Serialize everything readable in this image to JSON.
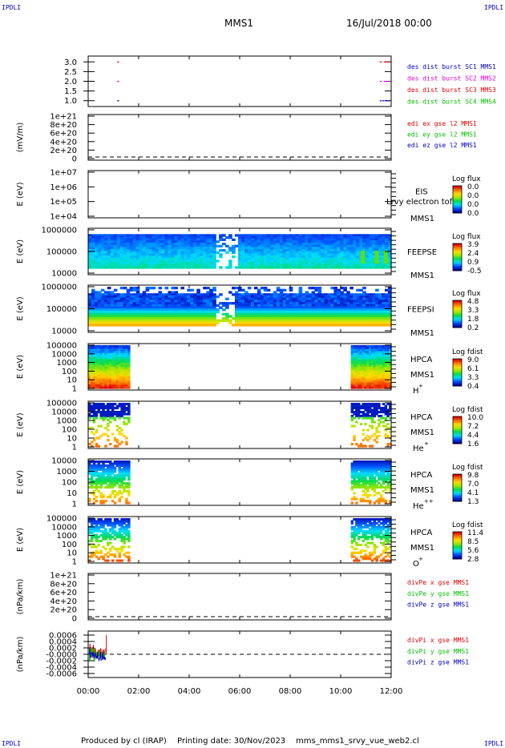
{
  "corner_marks": {
    "tl": "IPDLI",
    "tr": "IPDLI",
    "bl": "IPDLI",
    "br": "IPDLI"
  },
  "header": {
    "spacecraft": "MMS1",
    "date": "16/Jul/2018 00:00"
  },
  "footer": {
    "producer": "Produced by cl (IRAP)",
    "printing": "Printing date: 30/Nov/2023",
    "script": "mms_mms1_srvy_vue_web2.cl"
  },
  "colors": {
    "red": "#e00000",
    "magenta": "#e000e0",
    "green": "#00c000",
    "blue": "#0000c0",
    "dash": "#000000"
  },
  "chart_data": [
    {
      "id": "p1",
      "type": "scatter",
      "ylabel": "",
      "yticks": [
        "3.0",
        "2.5",
        "2.0",
        "1.5",
        "1.0"
      ],
      "ylim": [
        0.7,
        3.3
      ],
      "legend": [
        {
          "label": "des dist burst SC1 MMS1",
          "color": "blue"
        },
        {
          "label": "des dist burst SC2 MMS2",
          "color": "magenta"
        },
        {
          "label": "des dist burst SC3 MMS3",
          "color": "red"
        },
        {
          "label": "des dist burst SC4 MMS4",
          "color": "green"
        }
      ],
      "series": [
        {
          "name": "des dist burst SC1 MMS1",
          "color": "blue",
          "points": [
            [
              1.15,
              1.0
            ],
            [
              11.55,
              1.0
            ],
            [
              11.65,
              1.0
            ],
            [
              11.75,
              1.0
            ],
            [
              11.85,
              1.0
            ]
          ]
        },
        {
          "name": "des dist burst SC2 MMS2",
          "color": "magenta",
          "points": [
            [
              1.15,
              2.0
            ],
            [
              11.55,
              2.0
            ],
            [
              11.7,
              2.0
            ],
            [
              11.8,
              2.0
            ],
            [
              11.9,
              2.0
            ]
          ]
        },
        {
          "name": "des dist burst SC3 MMS3",
          "color": "red",
          "points": [
            [
              1.15,
              3.0
            ],
            [
              11.55,
              3.0
            ],
            [
              11.7,
              3.0
            ],
            [
              11.8,
              3.0
            ],
            [
              11.9,
              3.0
            ]
          ]
        }
      ]
    },
    {
      "id": "p2",
      "type": "line",
      "ylabel": "(mV/m)",
      "yticks": [
        "1e+21",
        "8e+20",
        "6e+20",
        "4e+20",
        "2e+20",
        "0"
      ],
      "ylim": [
        -2e+19,
        1.02e+21
      ],
      "dashed_zero": true,
      "legend": [
        {
          "label": "edi ex gse l2 MMS1",
          "color": "red"
        },
        {
          "label": "edi ey gse l2 MMS1",
          "color": "green"
        },
        {
          "label": "edi ez gse l2 MMS1",
          "color": "blue"
        }
      ]
    },
    {
      "id": "p3",
      "type": "heatmap",
      "ylabel": "E (eV)",
      "yticks": [
        "1e+07",
        "1e+06",
        "1e+05",
        "1e+04"
      ],
      "labels": [
        "EIS",
        "MMS1"
      ],
      "overlay": "Lrvy electron tof",
      "colorbar": {
        "title": "Log flux",
        "ticks": [
          "0.0",
          "0.0",
          "0.0",
          "0.0"
        ]
      },
      "blocks": []
    },
    {
      "id": "p4",
      "type": "heatmap",
      "ylabel": "E (eV)",
      "yticks": [
        "1000000",
        "100000",
        "10000"
      ],
      "labels": [
        "FEEPSE",
        "MMS1"
      ],
      "colorbar": {
        "title": "Log flux",
        "ticks": [
          "3.9",
          "2.4",
          "0.9",
          "-0.5"
        ]
      }
    },
    {
      "id": "p5",
      "type": "heatmap",
      "ylabel": "E (eV)",
      "yticks": [
        "1000000",
        "100000",
        "10000"
      ],
      "labels": [
        "FEEPSI",
        "MMS1"
      ],
      "colorbar": {
        "title": "Log flux",
        "ticks": [
          "4.8",
          "3.3",
          "1.8",
          "0.2"
        ]
      }
    },
    {
      "id": "p6",
      "type": "heatmap",
      "ylabel": "E (eV)",
      "yticks": [
        "100000",
        "10000",
        "1000",
        "100",
        "10",
        "1"
      ],
      "labels": [
        "HPCA",
        "MMS1",
        "H",
        "+"
      ],
      "colorbar": {
        "title": "Log fdist",
        "ticks": [
          "9.0",
          "6.1",
          "3.3",
          "0.4"
        ]
      }
    },
    {
      "id": "p7",
      "type": "heatmap",
      "ylabel": "E (eV)",
      "yticks": [
        "100000",
        "10000",
        "1000",
        "100",
        "10",
        "1"
      ],
      "labels": [
        "HPCA",
        "MMS1",
        "He",
        "+"
      ],
      "colorbar": {
        "title": "Log fdist",
        "ticks": [
          "10.0",
          "7.2",
          "4.4",
          "1.6"
        ]
      }
    },
    {
      "id": "p8",
      "type": "heatmap",
      "ylabel": "E (eV)",
      "yticks": [
        "10000",
        "1000",
        "100",
        "10",
        "1"
      ],
      "labels": [
        "HPCA",
        "MMS1",
        "He",
        "++"
      ],
      "colorbar": {
        "title": "Log fdist",
        "ticks": [
          "9.8",
          "7.0",
          "4.1",
          "1.3"
        ]
      }
    },
    {
      "id": "p9",
      "type": "heatmap",
      "ylabel": "E (eV)",
      "yticks": [
        "100000",
        "10000",
        "1000",
        "100",
        "10",
        "1"
      ],
      "labels": [
        "HPCA",
        "MMS1",
        "O",
        "+"
      ],
      "colorbar": {
        "title": "Log fdist",
        "ticks": [
          "11.4",
          "8.5",
          "5.6",
          "2.8"
        ]
      }
    },
    {
      "id": "p10",
      "type": "line",
      "ylabel": "(nPa/km)",
      "yticks": [
        "1e+21",
        "8e+20",
        "6e+20",
        "4e+20",
        "2e+20",
        "0"
      ],
      "dashed_zero": true,
      "legend": [
        {
          "label": "divPe x gse MMS1",
          "color": "red"
        },
        {
          "label": "divPe y gse MMS1",
          "color": "green"
        },
        {
          "label": "divPe z gse MMS1",
          "color": "blue"
        }
      ]
    },
    {
      "id": "p11",
      "type": "line",
      "ylabel": "(nPa/km)",
      "yticks": [
        "0.0006",
        "0.0004",
        "0.0002",
        "-0.0000",
        "-0.0002",
        "-0.0004",
        "-0.0006"
      ],
      "dashed_zero": true,
      "legend": [
        {
          "label": "divPi x gse MMS1",
          "color": "red"
        },
        {
          "label": "divPi y gse MMS1",
          "color": "green"
        },
        {
          "label": "divPi z gse MMS1",
          "color": "blue"
        }
      ]
    }
  ],
  "xaxis": {
    "ticks": [
      "00:00",
      "02:00",
      "04:00",
      "06:00",
      "08:00",
      "10:00",
      "12:00"
    ],
    "range_hours": [
      0,
      12
    ]
  }
}
